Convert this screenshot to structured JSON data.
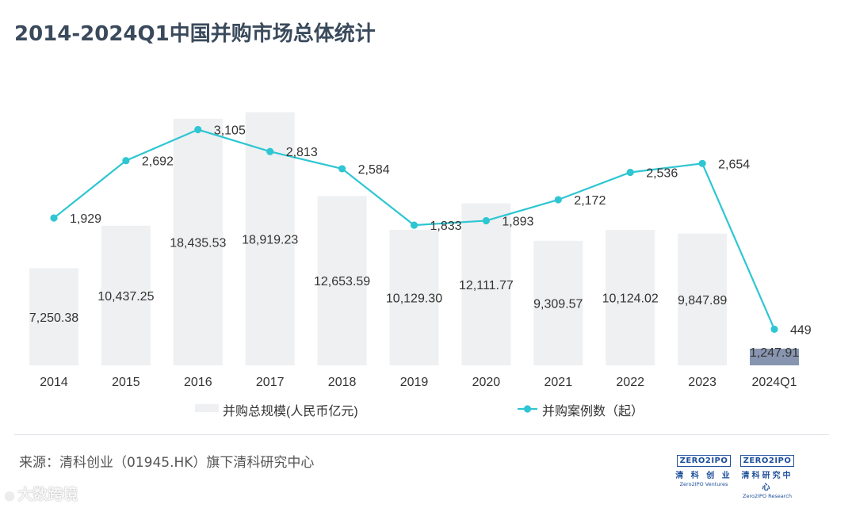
{
  "title": "2014-2024Q1中国并购市场总体统计",
  "source": "来源：清科创业（01945.HK）旗下清科研究中心",
  "logos": [
    {
      "mark": "ZERO2IPO",
      "cn": "清 科 创 业",
      "en": "Zero2IPO Ventures"
    },
    {
      "mark": "ZERO2IPO",
      "cn": "清科研究中心",
      "en": "Zero2IPO Research"
    }
  ],
  "watermark": {
    "icon": "◎",
    "text": "大数跨境"
  },
  "colors": {
    "bar": "#eef0f2",
    "bar_highlight": "#8795b0",
    "line": "#2ec6d2",
    "text": "#333333"
  },
  "chart_data": {
    "type": "bar+line",
    "title": "2014-2024Q1中国并购市场总体统计",
    "categories": [
      "2014",
      "2015",
      "2016",
      "2017",
      "2018",
      "2019",
      "2020",
      "2021",
      "2022",
      "2023",
      "2024Q1"
    ],
    "series": [
      {
        "name": "并购总规模(人民币亿元)",
        "type": "bar",
        "values": [
          7250.38,
          10437.25,
          18435.53,
          18919.23,
          12653.59,
          10129.3,
          12111.77,
          9309.57,
          10124.02,
          9847.89,
          1247.91
        ],
        "labels": [
          "7,250.38",
          "10,437.25",
          "18,435.53",
          "18,919.23",
          "12,653.59",
          "10,129.30",
          "12,111.77",
          "9,309.57",
          "10,124.02",
          "9,847.89",
          "1,247.91"
        ],
        "ylim": [
          0,
          20000
        ]
      },
      {
        "name": "并购案例数（起）",
        "type": "line",
        "values": [
          1929,
          2692,
          3105,
          2813,
          2584,
          1833,
          1893,
          2172,
          2536,
          2654,
          449
        ],
        "labels": [
          "1,929",
          "2,692",
          "3,105",
          "2,813",
          "2,584",
          "1,833",
          "1,893",
          "2,172",
          "2,536",
          "2,654",
          "449"
        ],
        "ylim": [
          0,
          3430
        ]
      }
    ],
    "legend": "bottom"
  }
}
